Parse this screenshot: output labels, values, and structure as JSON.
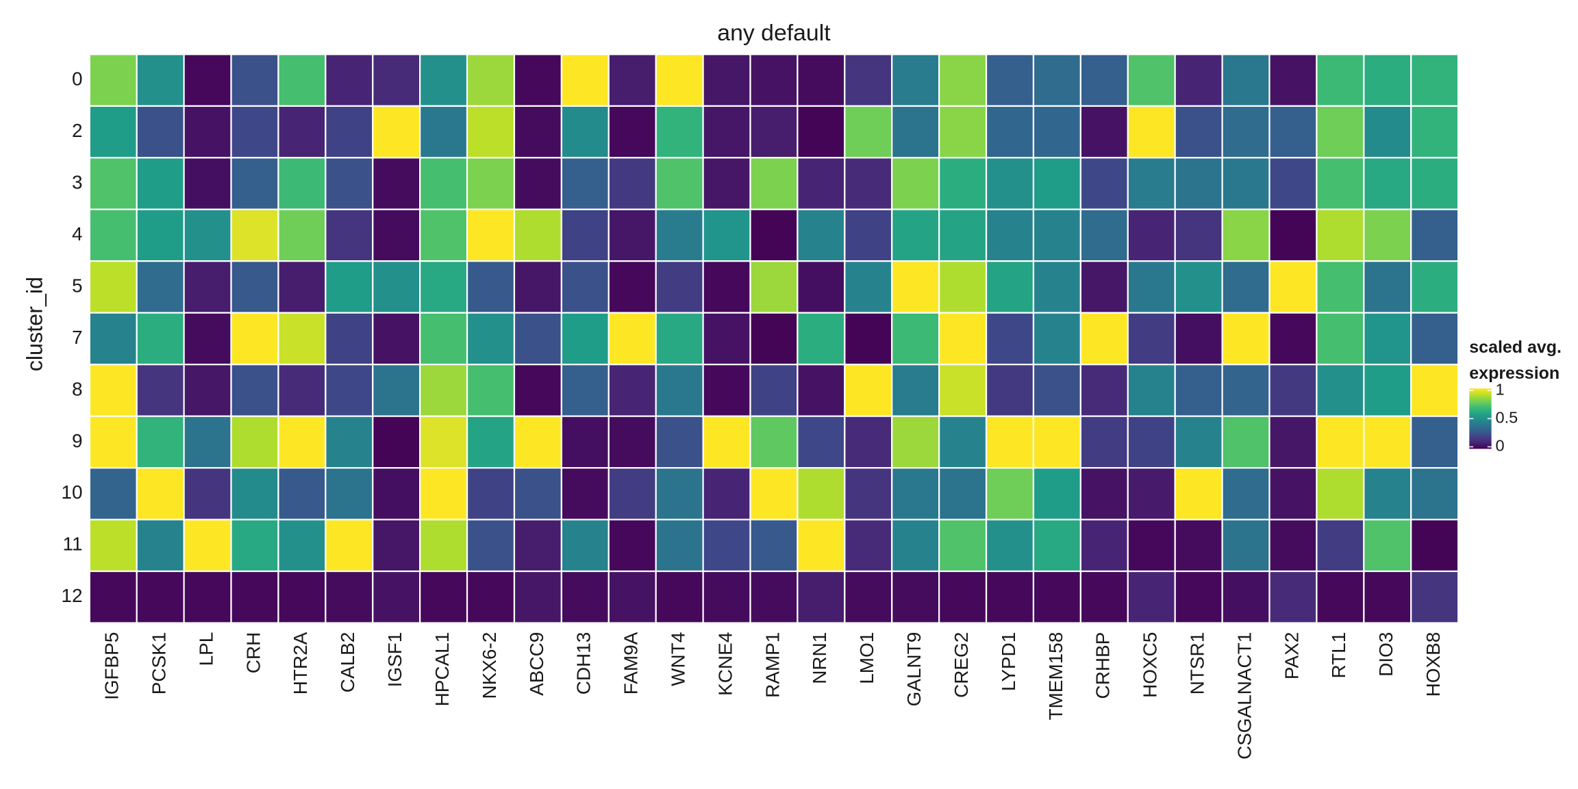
{
  "chart_data": {
    "type": "heatmap",
    "title": "any default",
    "y_label": "cluster_id",
    "x": [
      "IGFBP5",
      "PCSK1",
      "LPL",
      "CRH",
      "HTR2A",
      "CALB2",
      "IGSF1",
      "HPCAL1",
      "NKX6-2",
      "ABCC9",
      "CDH13",
      "FAM9A",
      "WNT4",
      "KCNE4",
      "RAMP1",
      "NRN1",
      "LMO1",
      "GALNT9",
      "CREG2",
      "LYPD1",
      "TMEM158",
      "CRHBP",
      "HOXC5",
      "NTSR1",
      "CSGALNACT1",
      "PAX2",
      "RTL1",
      "DIO3",
      "HOXB8"
    ],
    "y": [
      "0",
      "2",
      "3",
      "4",
      "5",
      "7",
      "8",
      "9",
      "10",
      "11",
      "12"
    ],
    "values": [
      [
        0.8,
        0.5,
        0.02,
        0.25,
        0.7,
        0.1,
        0.12,
        0.5,
        0.85,
        0.02,
        1,
        0.08,
        1,
        0.06,
        0.05,
        0.03,
        0.15,
        0.42,
        0.82,
        0.3,
        0.35,
        0.3,
        0.72,
        0.1,
        0.4,
        0.05,
        0.68,
        0.62,
        0.65
      ],
      [
        0.55,
        0.25,
        0.05,
        0.22,
        0.1,
        0.2,
        1,
        0.4,
        0.9,
        0.03,
        0.48,
        0.02,
        0.65,
        0.06,
        0.08,
        0.01,
        0.78,
        0.38,
        0.82,
        0.33,
        0.33,
        0.05,
        1,
        0.25,
        0.35,
        0.3,
        0.78,
        0.48,
        0.65
      ],
      [
        0.72,
        0.55,
        0.04,
        0.3,
        0.68,
        0.25,
        0.03,
        0.7,
        0.8,
        0.03,
        0.3,
        0.17,
        0.72,
        0.06,
        0.8,
        0.1,
        0.12,
        0.8,
        0.62,
        0.5,
        0.55,
        0.22,
        0.42,
        0.38,
        0.4,
        0.22,
        0.7,
        0.6,
        0.62
      ],
      [
        0.7,
        0.55,
        0.5,
        0.95,
        0.78,
        0.15,
        0.03,
        0.72,
        1,
        0.88,
        0.2,
        0.06,
        0.42,
        0.52,
        0.01,
        0.45,
        0.2,
        0.58,
        0.58,
        0.45,
        0.45,
        0.35,
        0.1,
        0.15,
        0.82,
        0.01,
        0.88,
        0.8,
        0.3
      ],
      [
        0.9,
        0.35,
        0.08,
        0.28,
        0.08,
        0.55,
        0.5,
        0.6,
        0.28,
        0.06,
        0.25,
        0.02,
        0.18,
        0.02,
        0.85,
        0.04,
        0.45,
        1,
        0.88,
        0.58,
        0.45,
        0.06,
        0.4,
        0.5,
        0.35,
        1,
        0.7,
        0.38,
        0.62
      ],
      [
        0.45,
        0.62,
        0.03,
        1,
        0.92,
        0.2,
        0.05,
        0.7,
        0.5,
        0.25,
        0.55,
        1,
        0.6,
        0.05,
        0.01,
        0.62,
        0.01,
        0.68,
        1,
        0.22,
        0.45,
        1,
        0.18,
        0.04,
        1,
        0.02,
        0.7,
        0.52,
        0.3
      ],
      [
        1,
        0.15,
        0.06,
        0.25,
        0.12,
        0.22,
        0.38,
        0.85,
        0.7,
        0.02,
        0.3,
        0.1,
        0.4,
        0.02,
        0.2,
        0.05,
        1,
        0.42,
        0.92,
        0.17,
        0.25,
        0.12,
        0.45,
        0.3,
        0.32,
        0.17,
        0.5,
        0.55,
        1
      ],
      [
        1,
        0.65,
        0.38,
        0.88,
        1,
        0.45,
        0.01,
        0.95,
        0.58,
        1,
        0.04,
        0.03,
        0.25,
        1,
        0.75,
        0.22,
        0.12,
        0.85,
        0.45,
        1,
        1,
        0.18,
        0.2,
        0.45,
        0.72,
        0.06,
        1,
        1,
        0.3
      ],
      [
        0.32,
        1,
        0.15,
        0.48,
        0.28,
        0.38,
        0.04,
        1,
        0.2,
        0.25,
        0.03,
        0.18,
        0.38,
        0.1,
        1,
        0.88,
        0.15,
        0.4,
        0.38,
        0.78,
        0.55,
        0.05,
        0.07,
        1,
        0.35,
        0.05,
        0.88,
        0.45,
        0.38
      ],
      [
        0.9,
        0.45,
        1,
        0.6,
        0.5,
        1,
        0.06,
        0.88,
        0.25,
        0.08,
        0.45,
        0.02,
        0.38,
        0.22,
        0.28,
        1,
        0.12,
        0.45,
        0.72,
        0.5,
        0.6,
        0.1,
        0.02,
        0.03,
        0.38,
        0.03,
        0.18,
        0.72,
        0.01
      ],
      [
        0.02,
        0.02,
        0.02,
        0.02,
        0.02,
        0.03,
        0.05,
        0.02,
        0.02,
        0.06,
        0.03,
        0.05,
        0.02,
        0.03,
        0.03,
        0.08,
        0.03,
        0.03,
        0.02,
        0.02,
        0.02,
        0.02,
        0.1,
        0.02,
        0.04,
        0.12,
        0.02,
        0.02,
        0.15
      ]
    ],
    "colorscale": [
      "#440154",
      "#482878",
      "#3e4989",
      "#31688e",
      "#26828e",
      "#1f9e89",
      "#35b779",
      "#6ece58",
      "#b5de2b",
      "#fde725"
    ],
    "zlim": [
      0,
      1
    ],
    "zticks": [
      0,
      0.5,
      1
    ],
    "legend_title": [
      "scaled avg.",
      "expression"
    ]
  }
}
